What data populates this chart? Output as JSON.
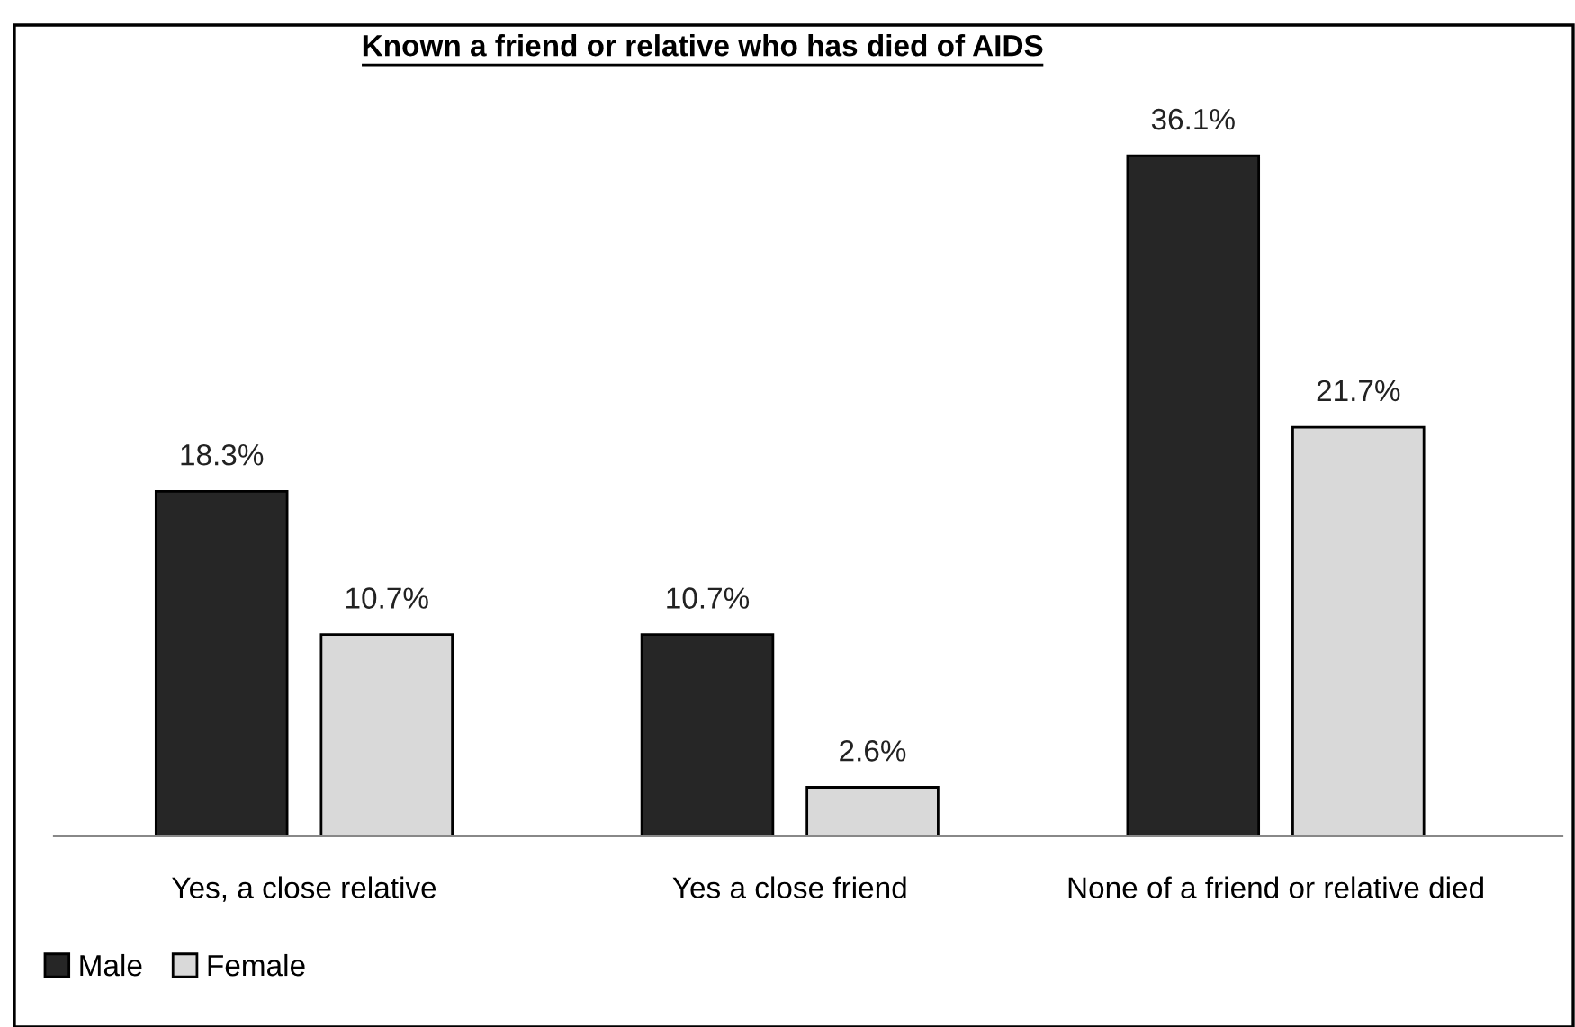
{
  "chart_data": {
    "type": "bar",
    "title": "Known a friend or relative who has died of AIDS",
    "categories": [
      "Yes, a close relative",
      "Yes a close friend",
      "None of a friend or relative died"
    ],
    "series": [
      {
        "name": "Male",
        "color": "#262626",
        "values": [
          18.3,
          10.7,
          36.1
        ],
        "value_labels": [
          "18.3%",
          "10.7%",
          "36.1%"
        ]
      },
      {
        "name": "Female",
        "color": "#d9d9d9",
        "values": [
          10.7,
          2.6,
          21.7
        ],
        "value_labels": [
          "10.7%",
          "2.6%",
          "21.7%"
        ]
      }
    ],
    "legend": "bottom left",
    "grid": false
  }
}
